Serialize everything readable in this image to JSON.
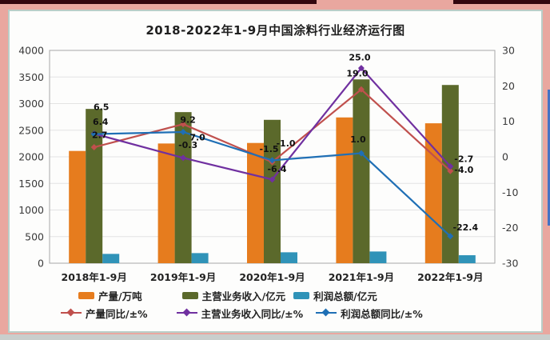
{
  "frame": {
    "top_bar_color": "#33060e",
    "border_color": "#e9a79f",
    "panel_background": "#fdfdfc",
    "panel_border_color": "#b9cec8",
    "right_accent_stripe_color": "#4472c4",
    "bottom_strip_color": "#c9cecc"
  },
  "chart_data": {
    "type": "combo-bar-line",
    "title": "2018-2022年1-9月中国涂料行业经济运行图",
    "categories": [
      "2018年1-9月",
      "2019年1-9月",
      "2020年1-9月",
      "2021年1-9月",
      "2022年1-9月"
    ],
    "bar_series": [
      {
        "name": "产量/万吨",
        "color": "#e67c1e",
        "axis": "left",
        "values": [
          2110,
          2250,
          2260,
          2740,
          2630
        ]
      },
      {
        "name": "主营业务收入/亿元",
        "color": "#5b692b",
        "axis": "left",
        "values": [
          2900,
          2840,
          2695,
          3455,
          3350
        ]
      },
      {
        "name": "利润总额/亿元",
        "color": "#3093b8",
        "axis": "left",
        "values": [
          175,
          190,
          205,
          220,
          150
        ]
      }
    ],
    "line_series": [
      {
        "name": "产量同比/±%",
        "color": "#c0504d",
        "axis": "right",
        "values": [
          2.7,
          9.2,
          -1.5,
          19.0,
          -4.0
        ]
      },
      {
        "name": "主营业务收入同比/±%",
        "color": "#7030a0",
        "axis": "right",
        "values": [
          6.5,
          -0.3,
          -6.4,
          25.0,
          -2.7
        ]
      },
      {
        "name": "利润总额同比/±%",
        "color": "#1f6fb5",
        "axis": "right",
        "values": [
          6.4,
          7.0,
          -1.0,
          1.0,
          -22.4
        ]
      }
    ],
    "left_axis": {
      "min": 0,
      "max": 4000,
      "step": 500,
      "ticks": [
        0,
        500,
        1000,
        1500,
        2000,
        2500,
        3000,
        3500,
        4000
      ]
    },
    "right_axis": {
      "min": -30,
      "max": 30,
      "step": 10,
      "ticks": [
        -30,
        -20,
        -10,
        0,
        10,
        20,
        30
      ]
    },
    "grid": true,
    "legend_position": "bottom"
  }
}
